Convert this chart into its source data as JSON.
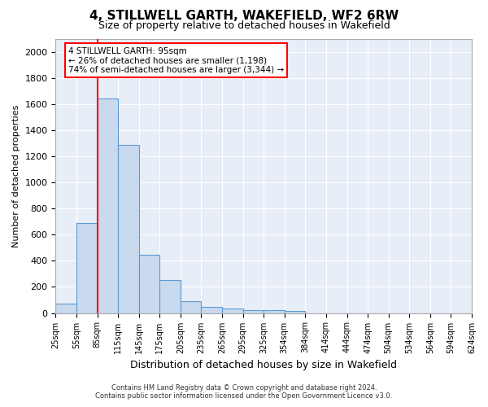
{
  "title": "4, STILLWELL GARTH, WAKEFIELD, WF2 6RW",
  "subtitle": "Size of property relative to detached houses in Wakefield",
  "xlabel": "Distribution of detached houses by size in Wakefield",
  "ylabel": "Number of detached properties",
  "bar_color": "#c9d9ee",
  "bar_edge_color": "#5b9bd5",
  "background_color": "#e8eef7",
  "grid_color": "#ffffff",
  "bin_labels": [
    "25sqm",
    "55sqm",
    "85sqm",
    "115sqm",
    "145sqm",
    "175sqm",
    "205sqm",
    "235sqm",
    "265sqm",
    "295sqm",
    "325sqm",
    "354sqm",
    "384sqm",
    "414sqm",
    "444sqm",
    "474sqm",
    "504sqm",
    "534sqm",
    "564sqm",
    "594sqm",
    "624sqm"
  ],
  "bar_heights": [
    70,
    690,
    1640,
    1285,
    445,
    255,
    90,
    50,
    35,
    25,
    20,
    15,
    0,
    0,
    0,
    0,
    0,
    0,
    0,
    0
  ],
  "ylim": [
    0,
    2100
  ],
  "yticks": [
    0,
    200,
    400,
    600,
    800,
    1000,
    1200,
    1400,
    1600,
    1800,
    2000
  ],
  "red_line_bin_index": 2,
  "annotation_title": "4 STILLWELL GARTH: 95sqm",
  "annotation_line1": "← 26% of detached houses are smaller (1,198)",
  "annotation_line2": "74% of semi-detached houses are larger (3,344) →",
  "footer_line1": "Contains HM Land Registry data © Crown copyright and database right 2024.",
  "footer_line2": "Contains public sector information licensed under the Open Government Licence v3.0."
}
